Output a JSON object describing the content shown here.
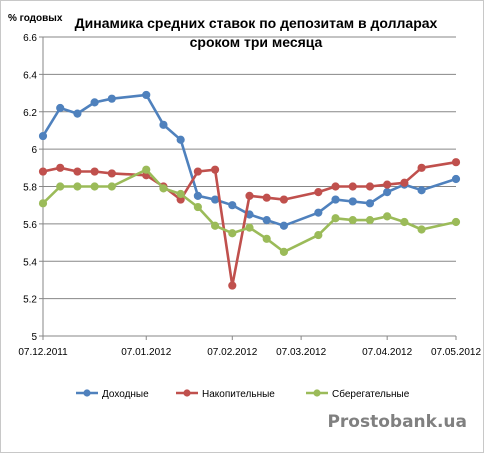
{
  "chart_data": {
    "type": "line",
    "title_lines": [
      "Динамика средних ставок по депозитам в долларах",
      "сроком три месяца"
    ],
    "ylabel": "% годовых",
    "xlabel": "",
    "ylim": [
      5,
      6.6
    ],
    "yticks": [
      "5",
      "5.2",
      "5.4",
      "5.6",
      "5.8",
      "6",
      "6.2",
      "6.4",
      "6.6"
    ],
    "grid": true,
    "legend_position": "bottom",
    "x_tick_labels": [
      {
        "index": 0,
        "label": "07.12.2011"
      },
      {
        "index": 6,
        "label": "07.01.2012"
      },
      {
        "index": 11,
        "label": "07.02.2012"
      },
      {
        "index": 15,
        "label": "07.03.2012"
      },
      {
        "index": 20,
        "label": "07.04.2012"
      },
      {
        "index": 24,
        "label": "07.05.2012"
      }
    ],
    "point_count": 25,
    "series": [
      {
        "name": "Доходные",
        "color": "#4f81bd",
        "values": [
          6.07,
          6.22,
          6.19,
          6.25,
          6.27,
          6.29,
          6.13,
          6.05,
          5.75,
          5.73,
          5.7,
          5.65,
          5.62,
          5.59,
          5.66,
          5.73,
          5.72,
          5.71,
          5.77,
          5.81,
          5.78,
          5.84
        ]
      },
      {
        "name": "Накопительные",
        "color": "#c0504d",
        "values": [
          5.88,
          5.9,
          5.88,
          5.88,
          5.87,
          5.86,
          5.8,
          5.73,
          5.88,
          5.89,
          5.27,
          5.75,
          5.74,
          5.73,
          5.77,
          5.8,
          5.8,
          5.8,
          5.81,
          5.82,
          5.9,
          5.93
        ]
      },
      {
        "name": "Сберегательные",
        "color": "#9bbb59",
        "values": [
          5.71,
          5.8,
          5.8,
          5.8,
          5.8,
          5.89,
          5.79,
          5.76,
          5.69,
          5.59,
          5.55,
          5.58,
          5.52,
          5.45,
          5.54,
          5.63,
          5.62,
          5.62,
          5.64,
          5.61,
          5.57,
          5.61
        ]
      }
    ],
    "x_index_map": [
      0,
      1,
      2,
      3,
      4,
      6,
      7,
      8,
      9,
      10,
      11,
      12,
      13,
      14,
      16,
      17,
      18,
      19,
      20,
      21,
      22,
      24
    ]
  },
  "watermark": "Prostobank.ua"
}
